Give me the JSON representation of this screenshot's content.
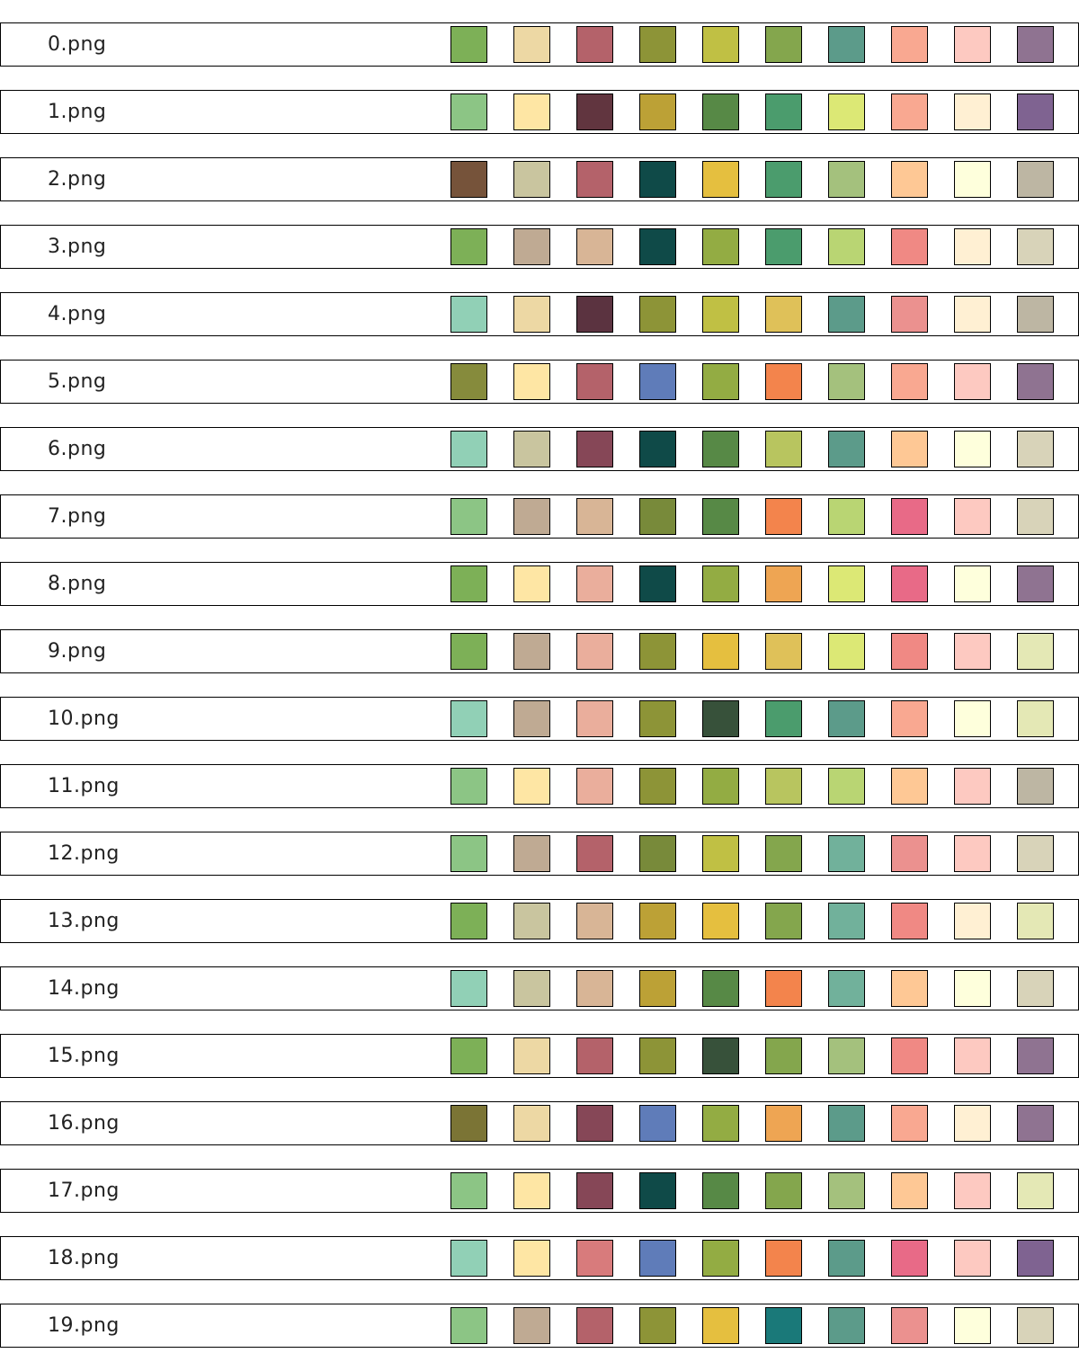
{
  "palettes": [
    {
      "label": "0.png",
      "colors": [
        "#7db057",
        "#edd8a4",
        "#b4626a",
        "#8d9437",
        "#c0c044",
        "#84a64d",
        "#5c9b8a",
        "#f9a891",
        "#fdc9c1",
        "#8f7391"
      ]
    },
    {
      "label": "1.png",
      "colors": [
        "#8cc585",
        "#fee6a4",
        "#61353f",
        "#bca136",
        "#578946",
        "#4b9c6d",
        "#dce875",
        "#f9a891",
        "#fff0d3",
        "#7f6391"
      ]
    },
    {
      "label": "2.png",
      "colors": [
        "#76533a",
        "#c9c59f",
        "#b4626a",
        "#0f4a48",
        "#e5bf3f",
        "#4b9c6d",
        "#a4c17d",
        "#fec895",
        "#feffdc",
        "#bdb6a3"
      ]
    },
    {
      "label": "3.png",
      "colors": [
        "#7db057",
        "#bfaa93",
        "#d8b596",
        "#0f4a48",
        "#93ac43",
        "#4b9c6d",
        "#b9d573",
        "#f08984",
        "#fff0d3",
        "#d8d3b9"
      ]
    },
    {
      "label": "4.png",
      "colors": [
        "#91d0b6",
        "#edd8a4",
        "#5b3340",
        "#8d9437",
        "#c0c044",
        "#dfc159",
        "#5c9b8a",
        "#eb918f",
        "#fff0d3",
        "#bdb6a3"
      ]
    },
    {
      "label": "5.png",
      "colors": [
        "#868b3c",
        "#fee6a4",
        "#b4626a",
        "#5f7cb9",
        "#93ac43",
        "#f3844c",
        "#a4c17d",
        "#f9a891",
        "#fdc9c1",
        "#8f7391"
      ]
    },
    {
      "label": "6.png",
      "colors": [
        "#91d0b6",
        "#c9c59f",
        "#864757",
        "#0f4a48",
        "#578946",
        "#b8c55f",
        "#5c9b8a",
        "#fec895",
        "#feffdc",
        "#d8d3b9"
      ]
    },
    {
      "label": "7.png",
      "colors": [
        "#8cc585",
        "#bfaa93",
        "#d8b596",
        "#788a3a",
        "#578946",
        "#f3844c",
        "#b9d573",
        "#e86a87",
        "#fdc9c1",
        "#d8d3b9"
      ]
    },
    {
      "label": "8.png",
      "colors": [
        "#7db057",
        "#fee6a4",
        "#eaae9c",
        "#0f4a48",
        "#93ac43",
        "#eea553",
        "#dce875",
        "#e86a87",
        "#feffdc",
        "#8f7391"
      ]
    },
    {
      "label": "9.png",
      "colors": [
        "#7db057",
        "#bfaa93",
        "#eaae9c",
        "#8d9437",
        "#e5bf3f",
        "#dfc159",
        "#dce875",
        "#f08984",
        "#fdc9c1",
        "#e4e8b5"
      ]
    },
    {
      "label": "10.png",
      "colors": [
        "#91d0b6",
        "#bfaa93",
        "#eaae9c",
        "#8d9437",
        "#37513a",
        "#4b9c6d",
        "#5c9b8a",
        "#f9a891",
        "#feffdc",
        "#e4e8b5"
      ]
    },
    {
      "label": "11.png",
      "colors": [
        "#8cc585",
        "#fee6a4",
        "#eaae9c",
        "#8d9437",
        "#93ac43",
        "#b8c55f",
        "#b9d573",
        "#fec895",
        "#fdc9c1",
        "#bdb6a3"
      ]
    },
    {
      "label": "12.png",
      "colors": [
        "#8cc585",
        "#bfaa93",
        "#b4626a",
        "#788a3a",
        "#c0c044",
        "#84a64d",
        "#71b19b",
        "#eb918f",
        "#fdc9c1",
        "#d8d3b9"
      ]
    },
    {
      "label": "13.png",
      "colors": [
        "#7db057",
        "#c9c59f",
        "#d8b596",
        "#bca136",
        "#e5bf3f",
        "#84a64d",
        "#71b19b",
        "#f08984",
        "#fff0d3",
        "#e4e8b5"
      ]
    },
    {
      "label": "14.png",
      "colors": [
        "#91d0b6",
        "#c9c59f",
        "#d8b596",
        "#bca136",
        "#578946",
        "#f3844c",
        "#71b19b",
        "#fec895",
        "#feffdc",
        "#d8d3b9"
      ]
    },
    {
      "label": "15.png",
      "colors": [
        "#7db057",
        "#edd8a4",
        "#b4626a",
        "#8d9437",
        "#37513a",
        "#84a64d",
        "#a4c17d",
        "#f08984",
        "#fdc9c1",
        "#8f7391"
      ]
    },
    {
      "label": "16.png",
      "colors": [
        "#7b7435",
        "#edd8a4",
        "#864757",
        "#5f7cb9",
        "#93ac43",
        "#eea553",
        "#5c9b8a",
        "#f9a891",
        "#fff0d3",
        "#8f7391"
      ]
    },
    {
      "label": "17.png",
      "colors": [
        "#8cc585",
        "#fee6a4",
        "#864757",
        "#0f4a48",
        "#578946",
        "#84a64d",
        "#a4c17d",
        "#fec895",
        "#fdc9c1",
        "#e4e8b5"
      ]
    },
    {
      "label": "18.png",
      "colors": [
        "#91d0b6",
        "#fee6a4",
        "#d87b7c",
        "#5f7cb9",
        "#93ac43",
        "#f3844c",
        "#5c9b8a",
        "#e86a87",
        "#fdc9c1",
        "#7f6391"
      ]
    },
    {
      "label": "19.png",
      "colors": [
        "#8cc585",
        "#bfaa93",
        "#b4626a",
        "#8d9437",
        "#e5bf3f",
        "#1a7979",
        "#5c9b8a",
        "#eb918f",
        "#feffdc",
        "#d8d3b9"
      ]
    }
  ]
}
